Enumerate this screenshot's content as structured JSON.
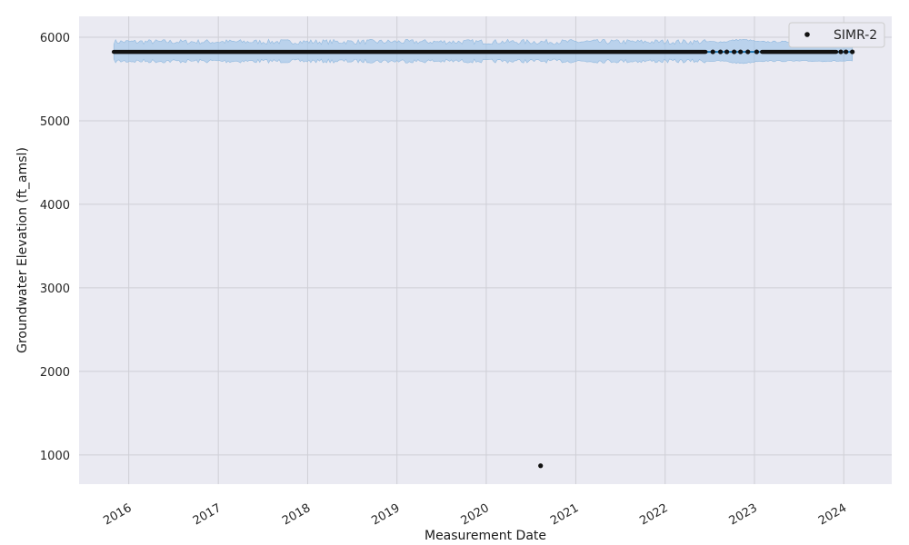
{
  "chart_data": {
    "type": "scatter",
    "xlabel": "Measurement Date",
    "ylabel": "Groundwater Elevation (ft_amsl)",
    "x_tick_labels": [
      "2016",
      "2017",
      "2018",
      "2019",
      "2020",
      "2021",
      "2022",
      "2023",
      "2024"
    ],
    "y_tick_labels": [
      "1000",
      "2000",
      "3000",
      "4000",
      "5000",
      "6000"
    ],
    "xlim": [
      "2015-06-12",
      "2024-07-15"
    ],
    "ylim": [
      650,
      6250
    ],
    "grid": true,
    "legend_position": "top-right",
    "series": [
      {
        "name": "SIMR-2",
        "marker": "dot",
        "color": "#111111",
        "continuous_segments": [
          {
            "start": "2015-11-01",
            "end": "2022-06-15",
            "value": 5825
          },
          {
            "start": "2023-02-01",
            "end": "2023-12-01",
            "value": 5825
          }
        ],
        "sparse_points": [
          {
            "x": "2022-07-15",
            "y": 5825
          },
          {
            "x": "2022-08-15",
            "y": 5825
          },
          {
            "x": "2022-09-10",
            "y": 5825
          },
          {
            "x": "2022-10-10",
            "y": 5825
          },
          {
            "x": "2022-11-05",
            "y": 5825
          },
          {
            "x": "2022-12-05",
            "y": 5825
          },
          {
            "x": "2023-01-10",
            "y": 5825
          },
          {
            "x": "2023-12-20",
            "y": 5825
          },
          {
            "x": "2024-01-10",
            "y": 5825
          },
          {
            "x": "2024-02-05",
            "y": 5825
          }
        ],
        "outliers": [
          {
            "x": "2020-08-10",
            "y": 870
          }
        ]
      }
    ],
    "forecast": {
      "line_color": "#1f77b4",
      "band_color": "#9fc5e8",
      "start": "2015-11-01",
      "end": "2024-02-05",
      "value": 5825,
      "band_lower": 5715,
      "band_upper": 5945
    }
  }
}
